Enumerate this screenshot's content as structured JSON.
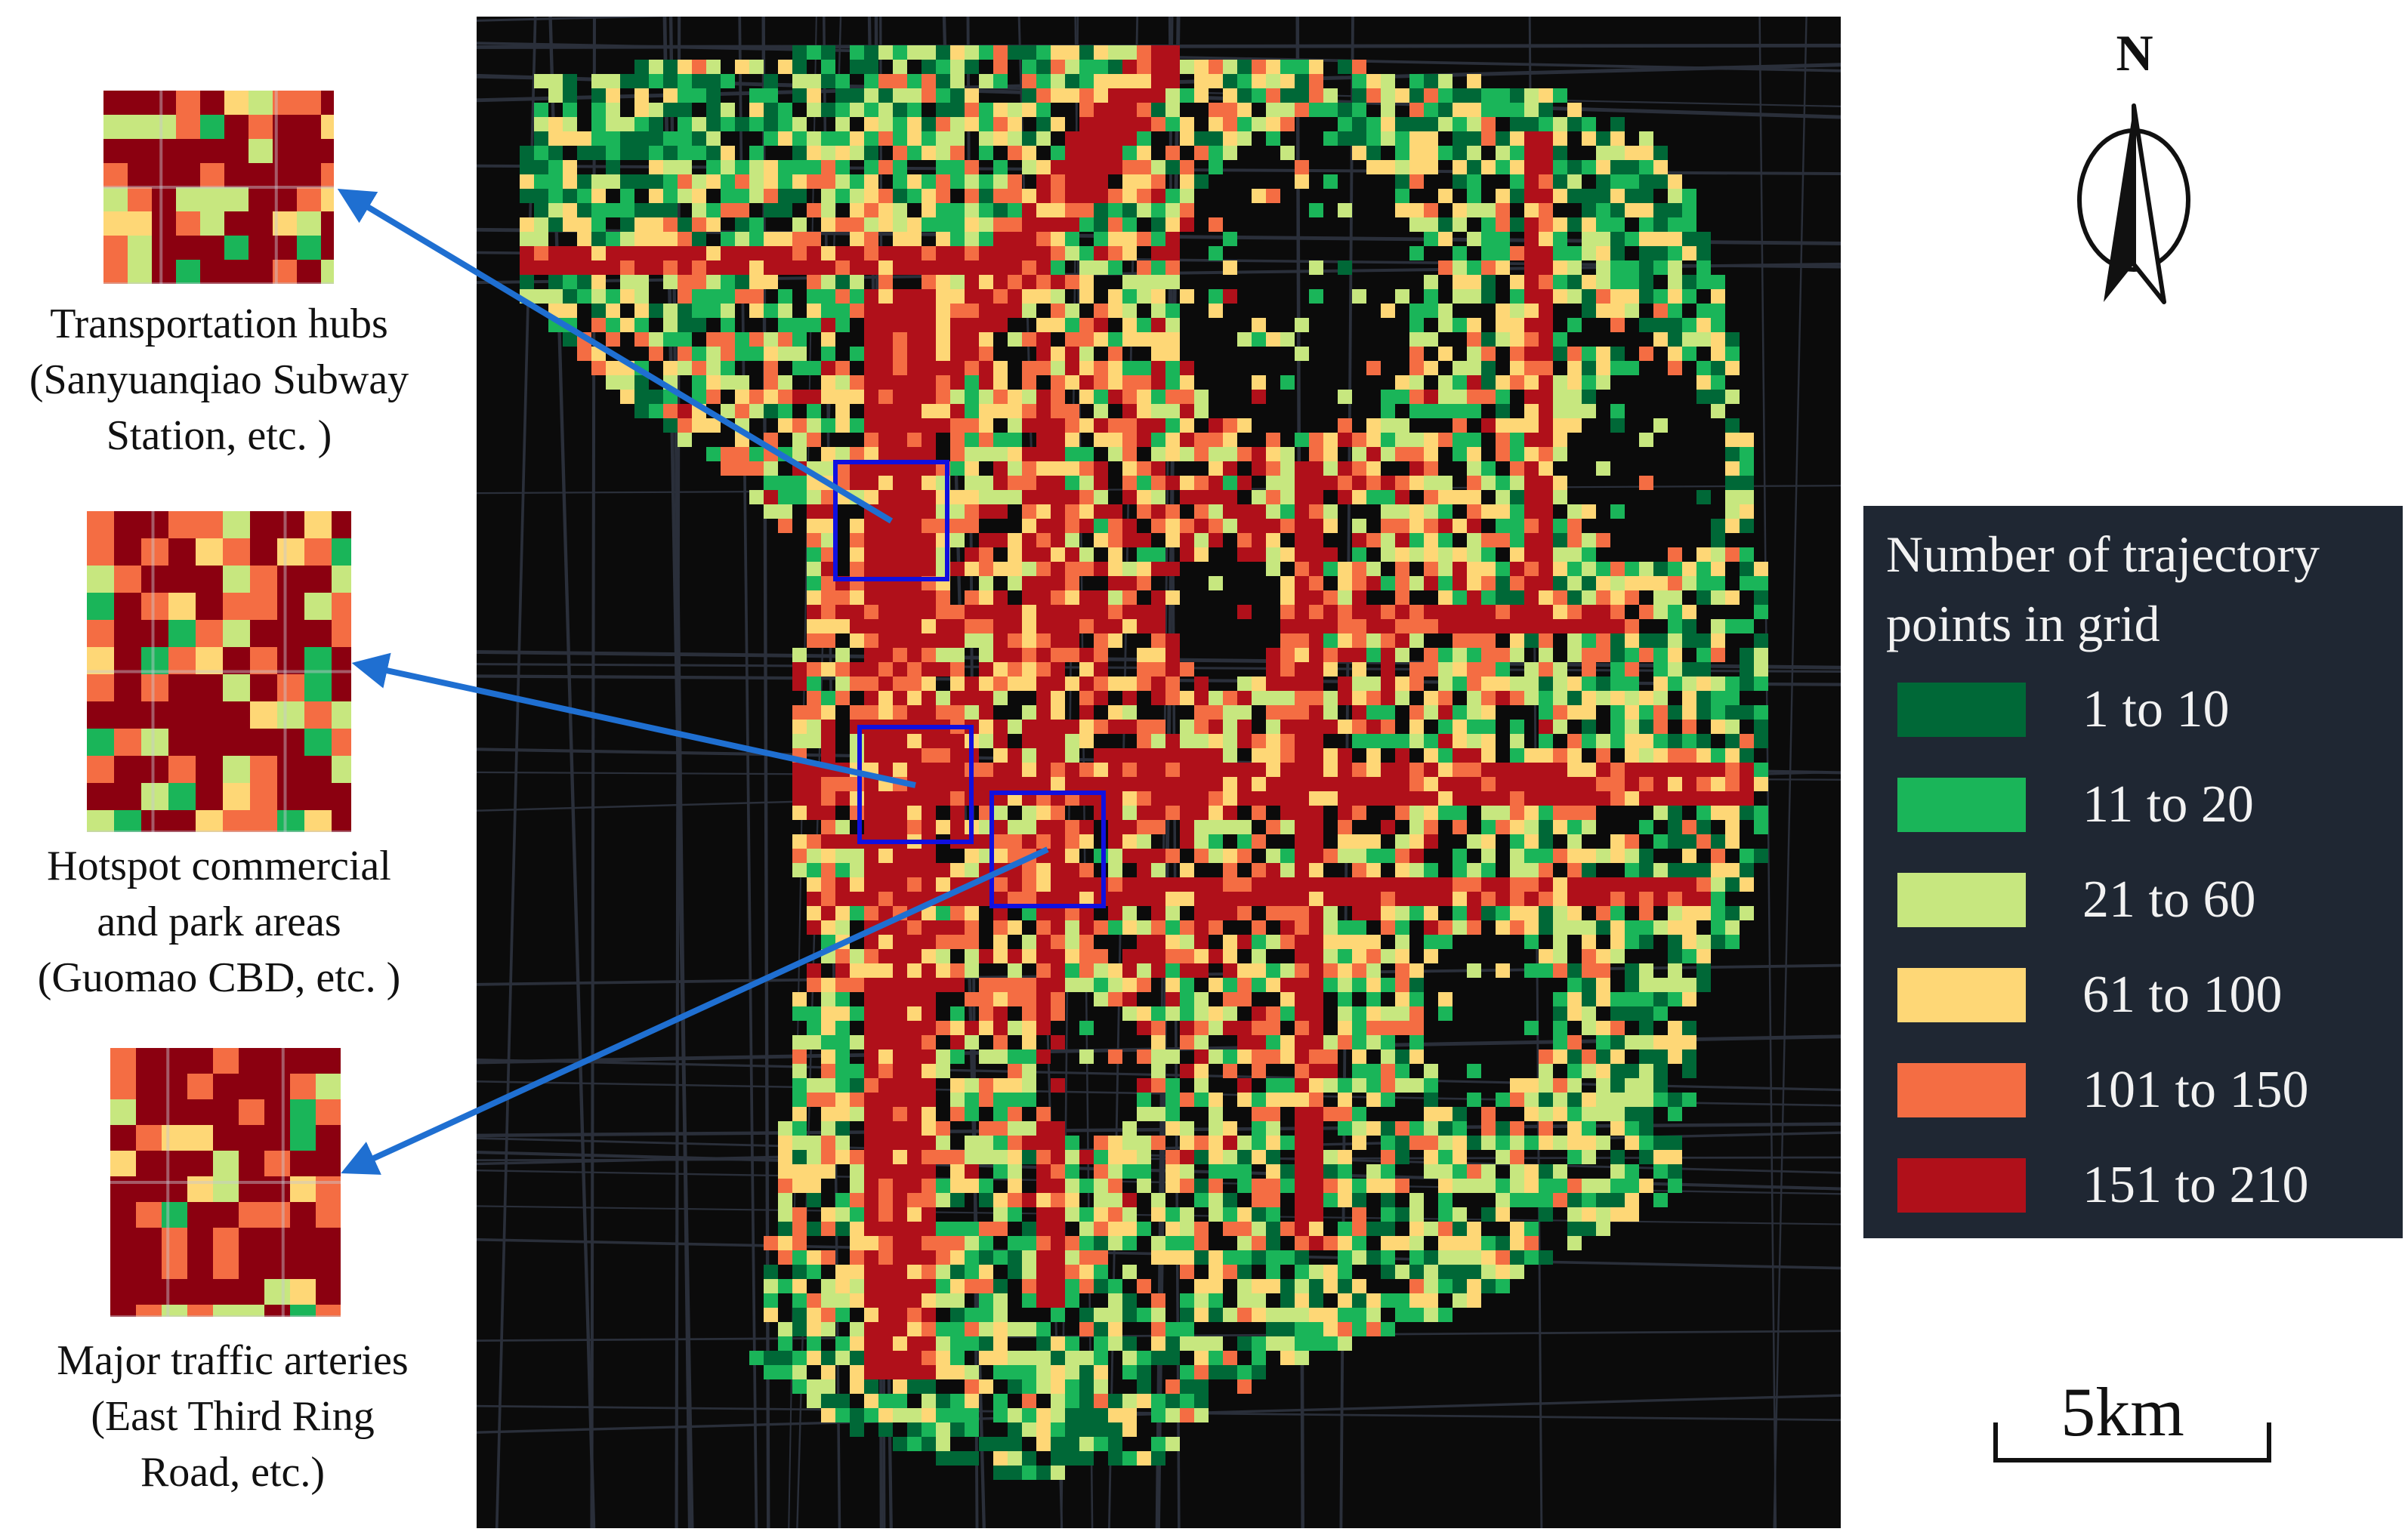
{
  "insets": [
    {
      "caption": [
        "Transportation hubs",
        "(Sanyuanqiao Subway",
        "Station, etc. )"
      ],
      "icon": "zoomed-grid-thumbnail"
    },
    {
      "caption": [
        "Hotspot commercial",
        "and park areas",
        "(Guomao CBD, etc. )"
      ],
      "icon": "zoomed-grid-thumbnail"
    },
    {
      "caption": [
        "Major traffic arteries",
        "(East Third Ring",
        "Road, etc.)"
      ],
      "icon": "zoomed-grid-thumbnail"
    }
  ],
  "north": {
    "label": "N",
    "icon": "north-arrow-icon"
  },
  "legend": {
    "title": [
      "Number of trajectory",
      "points in grid"
    ],
    "items": [
      {
        "label": "1 to 10",
        "color": "#006837"
      },
      {
        "label": "11 to 20",
        "color": "#1ab559"
      },
      {
        "label": "21 to 60",
        "color": "#c7e77f"
      },
      {
        "label": "61 to 100",
        "color": "#fed776"
      },
      {
        "label": "101 to 150",
        "color": "#f46d43"
      },
      {
        "label": "151 to 210",
        "color": "#b0101a"
      }
    ]
  },
  "scale": {
    "label": "5km"
  },
  "colors": {
    "map_background": "#0b0b0b",
    "road_lines": "#2a2f3a",
    "highlight_box": "#1010e0",
    "pointer_arrow": "#1f6fd1",
    "arterial": "#8b0010"
  }
}
